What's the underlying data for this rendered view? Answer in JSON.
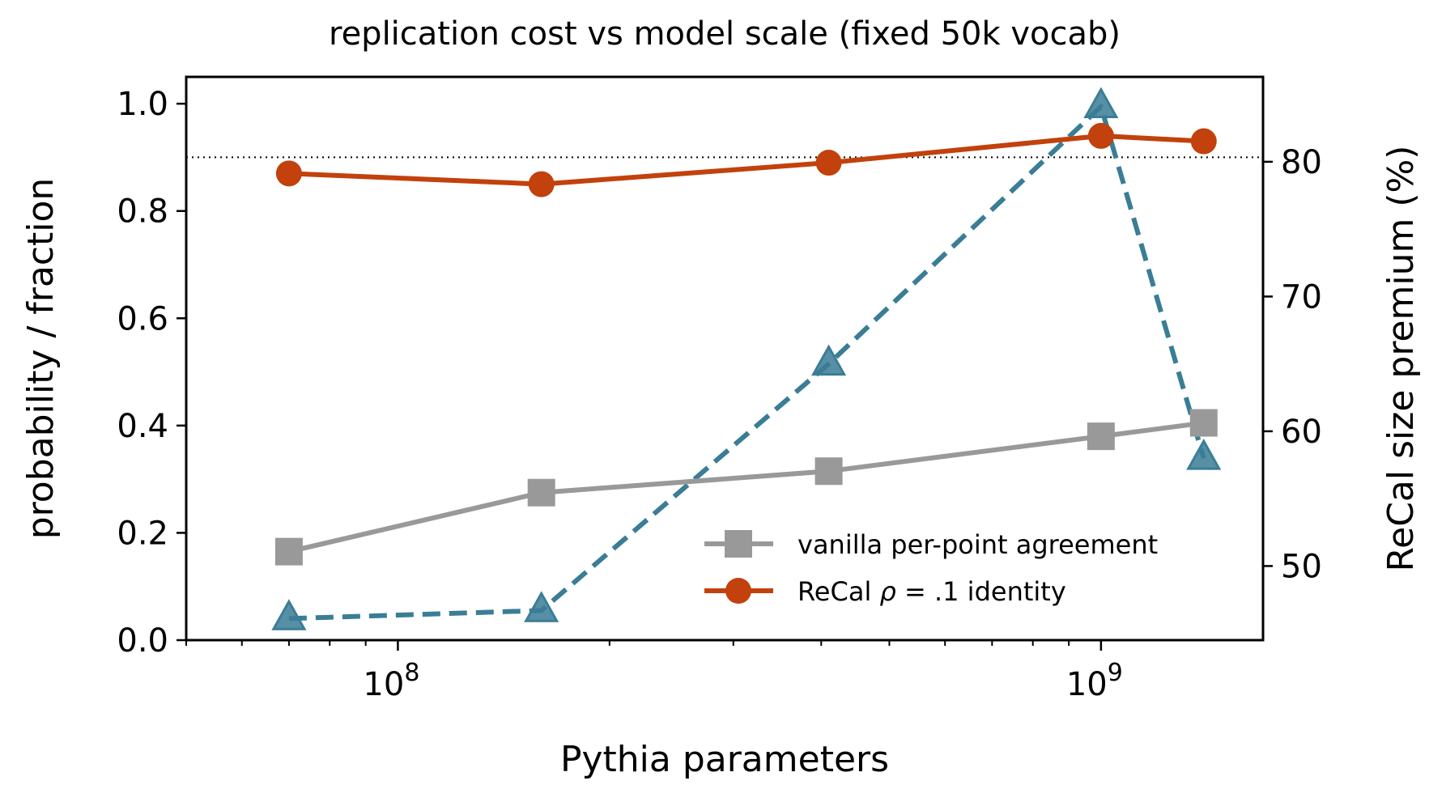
{
  "chart_data": {
    "type": "line",
    "title": "replication cost vs model scale (fixed 50k vocab)",
    "xlabel": "Pythia parameters",
    "ylabel": "probability / fraction",
    "ylabel_right": "ReCal size premium (%)",
    "x_scale": "log",
    "xlim": [
      50000000,
      1700000000
    ],
    "ylim": [
      0,
      1.05
    ],
    "ylim_right": [
      44.5,
      86.3
    ],
    "x": [
      70000000,
      160000000,
      410000000,
      1000000000,
      1400000000
    ],
    "x_ticks": [
      {
        "value": 100000000,
        "base": "10",
        "exp": "8"
      },
      {
        "value": 1000000000,
        "base": "10",
        "exp": "9"
      }
    ],
    "y_ticks": [
      {
        "value": 0.0,
        "label": "0.0"
      },
      {
        "value": 0.2,
        "label": "0.2"
      },
      {
        "value": 0.4,
        "label": "0.4"
      },
      {
        "value": 0.6,
        "label": "0.6"
      },
      {
        "value": 0.8,
        "label": "0.8"
      },
      {
        "value": 1.0,
        "label": "1.0"
      }
    ],
    "y_ticks_right": [
      {
        "value": 50,
        "label": "50"
      },
      {
        "value": 60,
        "label": "60"
      },
      {
        "value": 70,
        "label": "70"
      },
      {
        "value": 80,
        "label": "80"
      }
    ],
    "reference_line": {
      "y": 0.9,
      "style": "dotted",
      "color": "#000000"
    },
    "series": [
      {
        "name": "vanilla per-point agreement",
        "axis": "left",
        "marker": "square",
        "line": "solid",
        "color": "#999999",
        "values": [
          0.165,
          0.275,
          0.315,
          0.38,
          0.405
        ],
        "in_legend": true
      },
      {
        "name": "ReCal ρ = .1 identity",
        "axis": "left",
        "marker": "circle",
        "line": "solid",
        "color": "#c2410c",
        "values": [
          0.87,
          0.85,
          0.89,
          0.94,
          0.93
        ],
        "in_legend": true
      },
      {
        "axis": "right",
        "marker": "triangle",
        "line": "dashed",
        "color": "#3a7d96",
        "values": [
          46.1,
          46.7,
          65.0,
          84.1,
          58.0
        ],
        "in_legend": false
      }
    ],
    "legend": {
      "position": "lower-right",
      "entries": [
        {
          "label": "vanilla per-point agreement"
        },
        {
          "label_prefix": "ReCal ",
          "label_symbol": "ρ",
          "label_math": " = .1",
          "label_suffix": " identity"
        }
      ]
    }
  }
}
